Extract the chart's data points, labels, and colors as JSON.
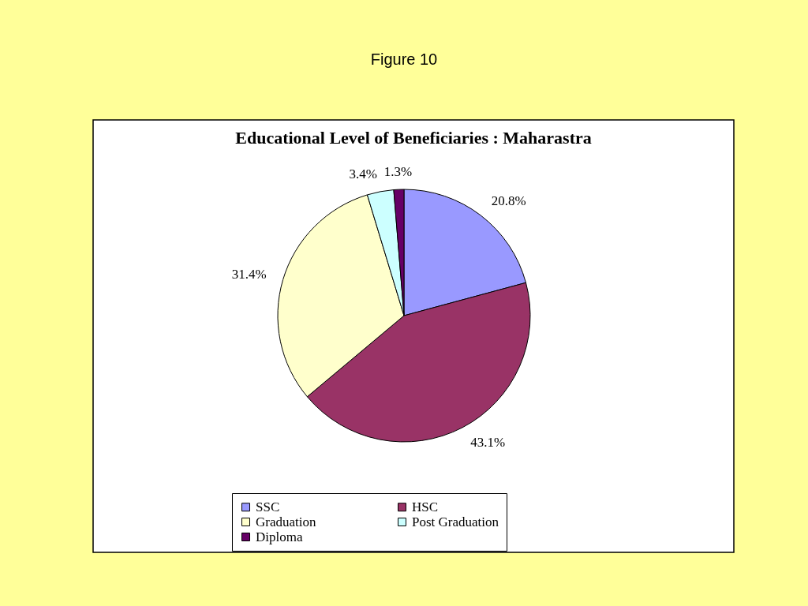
{
  "chart_data": {
    "type": "pie",
    "title": "Educational Level of Beneficiaries : Maharastra",
    "annotations": [
      "Figure 10"
    ],
    "categories": [
      "SSC",
      "HSC",
      "Graduation",
      "Post Graduation",
      "Diploma"
    ],
    "values": [
      20.8,
      43.1,
      31.4,
      3.4,
      1.3
    ],
    "colors": [
      "#9999ff",
      "#993366",
      "#ffffcc",
      "#ccffff",
      "#660066"
    ],
    "value_labels": [
      "20.8%",
      "43.1%",
      "31.4%",
      "3.4%",
      "1.3%"
    ],
    "legend": "bottom"
  }
}
